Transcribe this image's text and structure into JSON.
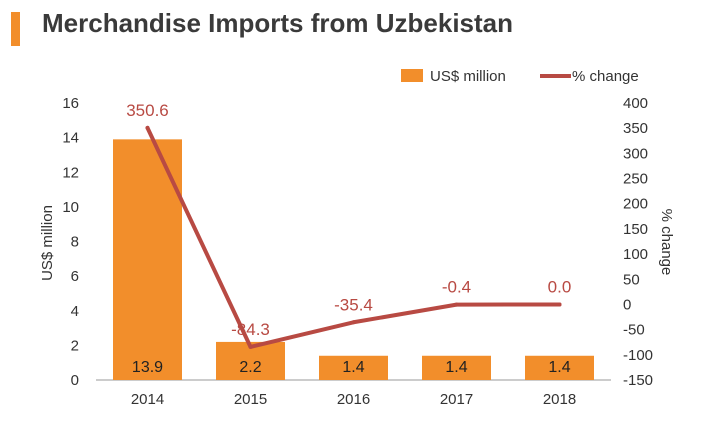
{
  "title": "Merchandise Imports from Uzbekistan",
  "colors": {
    "accent": "#F28E2B",
    "bar": "#F28E2B",
    "line": "#B84A43"
  },
  "chart_data": {
    "type": "bar",
    "title": "Merchandise Imports from Uzbekistan",
    "categories": [
      "2014",
      "2015",
      "2016",
      "2017",
      "2018"
    ],
    "series": [
      {
        "name": "US$ million",
        "type": "bar",
        "axis": "left",
        "values": [
          13.9,
          2.2,
          1.4,
          1.4,
          1.4
        ],
        "labels": [
          "13.9",
          "2.2",
          "1.4",
          "1.4",
          "1.4"
        ]
      },
      {
        "name": "% change",
        "type": "line",
        "axis": "right",
        "values": [
          350.6,
          -84.3,
          -35.4,
          -0.4,
          0.0
        ],
        "labels": [
          "350.6",
          "-84.3",
          "-35.4",
          "-0.4",
          "0.0"
        ]
      }
    ],
    "ylabel": "US$ million",
    "ylabel_right": "% change",
    "ylim": [
      0,
      16
    ],
    "ylim_right": [
      -150,
      400
    ],
    "yticks": [
      "0",
      "2",
      "4",
      "6",
      "8",
      "10",
      "12",
      "14",
      "16"
    ],
    "yticks_right": [
      "-150",
      "-100",
      "-50",
      "0",
      "50",
      "100",
      "150",
      "200",
      "250",
      "300",
      "350",
      "400"
    ],
    "grid": false,
    "legend_position": "top-right"
  }
}
